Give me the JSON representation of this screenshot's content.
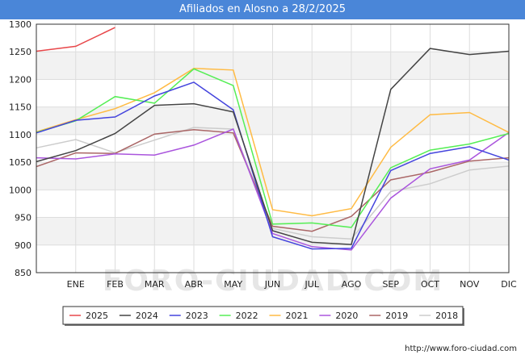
{
  "page": {
    "title": "Afiliados en Alosno a 28/2/2025",
    "credit": "http://www.foro-ciudad.com",
    "watermark": "FORO-CIUDAD.COM"
  },
  "chart_data": {
    "type": "line",
    "title": "Afiliados en Alosno a 28/2/2025",
    "categories": [
      "",
      "ENE",
      "FEB",
      "MAR",
      "ABR",
      "MAY",
      "JUN",
      "JUL",
      "AGO",
      "SEP",
      "OCT",
      "NOV",
      "DIC"
    ],
    "y_ticks": [
      850,
      900,
      950,
      1000,
      1050,
      1100,
      1150,
      1200,
      1250,
      1300
    ],
    "ylim": [
      850,
      1300
    ],
    "grid": true,
    "legend_position": "bottom",
    "series": [
      {
        "name": "2025",
        "color": "#e8474a",
        "values": [
          1251,
          1260,
          1294,
          null,
          null,
          null,
          null,
          null,
          null,
          null,
          null,
          null,
          null
        ]
      },
      {
        "name": "2024",
        "color": "#444444",
        "values": [
          1051,
          1071,
          1102,
          1153,
          1156,
          1141,
          926,
          905,
          901,
          1182,
          1256,
          1245,
          1251
        ]
      },
      {
        "name": "2023",
        "color": "#4444dd",
        "values": [
          1103,
          1126,
          1132,
          1170,
          1195,
          1145,
          915,
          893,
          894,
          1035,
          1066,
          1078,
          1054
        ]
      },
      {
        "name": "2022",
        "color": "#55ee55",
        "values": [
          1104,
          1125,
          1169,
          1157,
          1219,
          1189,
          938,
          940,
          932,
          1040,
          1072,
          1083,
          1102
        ]
      },
      {
        "name": "2021",
        "color": "#ffbb44",
        "values": [
          1105,
          1127,
          1147,
          1176,
          1220,
          1217,
          964,
          953,
          966,
          1077,
          1136,
          1140,
          1104
        ]
      },
      {
        "name": "2020",
        "color": "#aa55dd",
        "values": [
          1058,
          1056,
          1065,
          1063,
          1081,
          1110,
          921,
          897,
          891,
          985,
          1038,
          1054,
          1104
        ]
      },
      {
        "name": "2019",
        "color": "#aa6666",
        "values": [
          1042,
          1067,
          1066,
          1101,
          1109,
          1103,
          934,
          925,
          952,
          1018,
          1032,
          1052,
          1058
        ]
      },
      {
        "name": "2018",
        "color": "#cccccc",
        "values": [
          1076,
          1091,
          1067,
          1090,
          1113,
          1110,
          930,
          915,
          911,
          997,
          1011,
          1036,
          1043
        ]
      }
    ]
  }
}
